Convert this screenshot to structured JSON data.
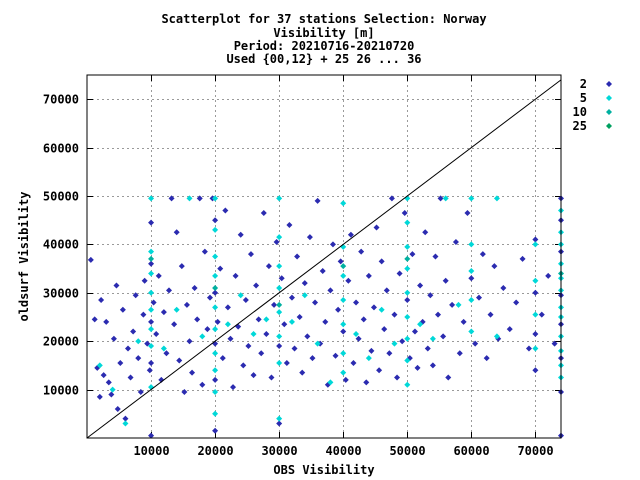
{
  "chart_data": {
    "type": "scatter",
    "title_lines": [
      "Scatterplot for   37 stations Selection: Norway",
      "Visibility [m]",
      "Period: 20210716-20210720",
      "Used {00,12} + 25 26 ... 36"
    ],
    "xlabel": "OBS Visibility",
    "ylabel": "oldsurf Visibility",
    "xlim": [
      0,
      74000
    ],
    "ylim": [
      0,
      75000
    ],
    "xticks": [
      10000,
      20000,
      30000,
      40000,
      50000,
      60000,
      70000
    ],
    "yticks": [
      10000,
      20000,
      30000,
      40000,
      50000,
      60000,
      70000
    ],
    "grid": true,
    "legend_placement": "right",
    "reference_line": "y = x",
    "series": [
      {
        "name": "2",
        "color": "#2b2bb0",
        "points": [
          [
            600,
            36800
          ],
          [
            1200,
            24500
          ],
          [
            1600,
            14500
          ],
          [
            2000,
            8500
          ],
          [
            2200,
            28500
          ],
          [
            2600,
            13000
          ],
          [
            3000,
            24000
          ],
          [
            3400,
            11500
          ],
          [
            3800,
            9000
          ],
          [
            4200,
            20500
          ],
          [
            4600,
            31500
          ],
          [
            4800,
            6000
          ],
          [
            5200,
            15500
          ],
          [
            5600,
            26500
          ],
          [
            6000,
            4000
          ],
          [
            6400,
            18500
          ],
          [
            6800,
            12500
          ],
          [
            7200,
            22000
          ],
          [
            7600,
            29500
          ],
          [
            8000,
            16500
          ],
          [
            8400,
            9500
          ],
          [
            8800,
            25500
          ],
          [
            9000,
            32500
          ],
          [
            9400,
            19500
          ],
          [
            9800,
            14000
          ],
          [
            10000,
            44500
          ],
          [
            10000,
            36000
          ],
          [
            10000,
            24000
          ],
          [
            10000,
            15500
          ],
          [
            10000,
            500
          ],
          [
            10400,
            28000
          ],
          [
            10800,
            21500
          ],
          [
            11200,
            33500
          ],
          [
            11600,
            12000
          ],
          [
            12000,
            26000
          ],
          [
            12400,
            17500
          ],
          [
            12800,
            30500
          ],
          [
            13200,
            49500
          ],
          [
            13600,
            23500
          ],
          [
            14000,
            42500
          ],
          [
            14400,
            16000
          ],
          [
            14800,
            35500
          ],
          [
            15200,
            9500
          ],
          [
            15600,
            27500
          ],
          [
            16000,
            20000
          ],
          [
            16400,
            13500
          ],
          [
            16800,
            31000
          ],
          [
            17200,
            24500
          ],
          [
            17600,
            49500
          ],
          [
            18000,
            11000
          ],
          [
            18400,
            38500
          ],
          [
            18800,
            22500
          ],
          [
            19200,
            29000
          ],
          [
            19600,
            49500
          ],
          [
            20000,
            45000
          ],
          [
            20000,
            30000
          ],
          [
            20000,
            19500
          ],
          [
            20000,
            12000
          ],
          [
            20000,
            1500
          ],
          [
            20400,
            24000
          ],
          [
            20800,
            35000
          ],
          [
            21200,
            16500
          ],
          [
            21600,
            47000
          ],
          [
            22000,
            27000
          ],
          [
            22400,
            20500
          ],
          [
            22800,
            10500
          ],
          [
            23200,
            33500
          ],
          [
            23600,
            23000
          ],
          [
            24000,
            42000
          ],
          [
            24400,
            15000
          ],
          [
            24800,
            28500
          ],
          [
            25200,
            19000
          ],
          [
            25600,
            38000
          ],
          [
            26000,
            13000
          ],
          [
            26400,
            31500
          ],
          [
            26800,
            24500
          ],
          [
            27200,
            17500
          ],
          [
            27600,
            46500
          ],
          [
            28000,
            21500
          ],
          [
            28400,
            35500
          ],
          [
            28800,
            12500
          ],
          [
            29200,
            27500
          ],
          [
            29600,
            40500
          ],
          [
            30000,
            19000
          ],
          [
            30000,
            3000
          ],
          [
            30400,
            33000
          ],
          [
            30800,
            23500
          ],
          [
            31200,
            15500
          ],
          [
            31600,
            44000
          ],
          [
            32000,
            29000
          ],
          [
            32400,
            18500
          ],
          [
            32800,
            37500
          ],
          [
            33200,
            25000
          ],
          [
            33600,
            13500
          ],
          [
            34000,
            32000
          ],
          [
            34400,
            21000
          ],
          [
            34800,
            41500
          ],
          [
            35200,
            16500
          ],
          [
            35600,
            28000
          ],
          [
            36000,
            49000
          ],
          [
            36400,
            19500
          ],
          [
            36800,
            34500
          ],
          [
            37200,
            24000
          ],
          [
            37600,
            11000
          ],
          [
            38000,
            30500
          ],
          [
            38400,
            40000
          ],
          [
            38800,
            17000
          ],
          [
            39200,
            26500
          ],
          [
            39600,
            36500
          ],
          [
            40000,
            22000
          ],
          [
            40400,
            12000
          ],
          [
            40800,
            32500
          ],
          [
            41200,
            42000
          ],
          [
            41600,
            15500
          ],
          [
            42000,
            28000
          ],
          [
            42400,
            20500
          ],
          [
            42800,
            38500
          ],
          [
            43200,
            24500
          ],
          [
            43600,
            11500
          ],
          [
            44000,
            33500
          ],
          [
            44400,
            18000
          ],
          [
            44800,
            27000
          ],
          [
            45200,
            43500
          ],
          [
            45600,
            14000
          ],
          [
            46000,
            36500
          ],
          [
            46400,
            22500
          ],
          [
            46800,
            30500
          ],
          [
            47200,
            17500
          ],
          [
            47600,
            49500
          ],
          [
            48000,
            25500
          ],
          [
            48400,
            12500
          ],
          [
            48800,
            34000
          ],
          [
            49200,
            20000
          ],
          [
            49600,
            46500
          ],
          [
            50000,
            28500
          ],
          [
            50400,
            16500
          ],
          [
            50800,
            38000
          ],
          [
            51200,
            22000
          ],
          [
            51600,
            14500
          ],
          [
            52000,
            31500
          ],
          [
            52400,
            24000
          ],
          [
            52800,
            42500
          ],
          [
            53200,
            18500
          ],
          [
            53600,
            29500
          ],
          [
            54000,
            15000
          ],
          [
            54400,
            37500
          ],
          [
            54800,
            25500
          ],
          [
            55200,
            49500
          ],
          [
            55600,
            21000
          ],
          [
            56000,
            32500
          ],
          [
            56400,
            12500
          ],
          [
            57000,
            27500
          ],
          [
            57600,
            40500
          ],
          [
            58200,
            17500
          ],
          [
            58800,
            24000
          ],
          [
            59400,
            46500
          ],
          [
            60000,
            33000
          ],
          [
            60600,
            19500
          ],
          [
            61200,
            29000
          ],
          [
            61800,
            38000
          ],
          [
            62400,
            16500
          ],
          [
            63000,
            25500
          ],
          [
            63600,
            35500
          ],
          [
            64200,
            20500
          ],
          [
            65000,
            31000
          ],
          [
            66000,
            22500
          ],
          [
            67000,
            28000
          ],
          [
            68000,
            37000
          ],
          [
            69000,
            18500
          ],
          [
            70000,
            41000
          ],
          [
            70000,
            30000
          ],
          [
            70000,
            21500
          ],
          [
            70000,
            14000
          ],
          [
            71000,
            25500
          ],
          [
            72000,
            33500
          ],
          [
            73000,
            19500
          ],
          [
            74000,
            49500
          ],
          [
            74000,
            45000
          ],
          [
            74000,
            38500
          ],
          [
            74000,
            29500
          ],
          [
            74000,
            23500
          ],
          [
            74000,
            16500
          ],
          [
            74000,
            9500
          ],
          [
            74000,
            500
          ]
        ]
      },
      {
        "name": "5",
        "color": "#00d8d8",
        "points": [
          [
            2000,
            15000
          ],
          [
            4000,
            10000
          ],
          [
            6000,
            3000
          ],
          [
            8000,
            20000
          ],
          [
            10000,
            49500
          ],
          [
            10000,
            38500
          ],
          [
            10000,
            34000
          ],
          [
            10000,
            30000
          ],
          [
            10000,
            26500
          ],
          [
            10000,
            22500
          ],
          [
            10000,
            19000
          ],
          [
            10000,
            10500
          ],
          [
            12000,
            18500
          ],
          [
            14000,
            26500
          ],
          [
            16000,
            49500
          ],
          [
            18000,
            21000
          ],
          [
            20000,
            49500
          ],
          [
            20000,
            43000
          ],
          [
            20000,
            37500
          ],
          [
            20000,
            33500
          ],
          [
            20000,
            27000
          ],
          [
            20000,
            22500
          ],
          [
            20000,
            17500
          ],
          [
            20000,
            14000
          ],
          [
            20000,
            9500
          ],
          [
            20000,
            5000
          ],
          [
            22000,
            23500
          ],
          [
            24000,
            29500
          ],
          [
            26000,
            21500
          ],
          [
            28000,
            24500
          ],
          [
            30000,
            49500
          ],
          [
            30000,
            41500
          ],
          [
            30000,
            35500
          ],
          [
            30000,
            31000
          ],
          [
            30000,
            26000
          ],
          [
            30000,
            21000
          ],
          [
            30000,
            15500
          ],
          [
            30000,
            4000
          ],
          [
            32000,
            24000
          ],
          [
            34000,
            29500
          ],
          [
            36000,
            19500
          ],
          [
            38000,
            11500
          ],
          [
            40000,
            48500
          ],
          [
            40000,
            39500
          ],
          [
            40000,
            33500
          ],
          [
            40000,
            28500
          ],
          [
            40000,
            23500
          ],
          [
            40000,
            17500
          ],
          [
            40000,
            13500
          ],
          [
            42000,
            21500
          ],
          [
            44000,
            16500
          ],
          [
            46000,
            26500
          ],
          [
            48000,
            19500
          ],
          [
            50000,
            49500
          ],
          [
            50000,
            44500
          ],
          [
            50000,
            39500
          ],
          [
            50000,
            35000
          ],
          [
            50000,
            30000
          ],
          [
            50000,
            25000
          ],
          [
            50000,
            20500
          ],
          [
            50000,
            16000
          ],
          [
            50000,
            11000
          ],
          [
            52000,
            23500
          ],
          [
            54000,
            20500
          ],
          [
            56000,
            49500
          ],
          [
            58000,
            27500
          ],
          [
            60000,
            49500
          ],
          [
            60000,
            40000
          ],
          [
            60000,
            34500
          ],
          [
            60000,
            28500
          ],
          [
            60000,
            22000
          ],
          [
            64000,
            49500
          ],
          [
            64000,
            21000
          ],
          [
            70000,
            40000
          ],
          [
            70000,
            32500
          ],
          [
            70000,
            25500
          ],
          [
            70000,
            18500
          ],
          [
            74000,
            47000
          ],
          [
            74000,
            42500
          ],
          [
            74000,
            40000
          ],
          [
            74000,
            36000
          ],
          [
            74000,
            33000
          ],
          [
            74000,
            30500
          ],
          [
            74000,
            27000
          ],
          [
            74000,
            25000
          ],
          [
            74000,
            21000
          ],
          [
            74000,
            18000
          ],
          [
            74000,
            15000
          ],
          [
            74000,
            12500
          ]
        ]
      },
      {
        "name": "10",
        "color": "#00b0a0",
        "points": [
          [
            10000,
            37000
          ],
          [
            20000,
            31000
          ],
          [
            30000,
            27500
          ],
          [
            40000,
            35500
          ],
          [
            50000,
            37000
          ],
          [
            74000,
            34000
          ]
        ]
      },
      {
        "name": "25",
        "color": "#00a060",
        "points": []
      }
    ]
  }
}
